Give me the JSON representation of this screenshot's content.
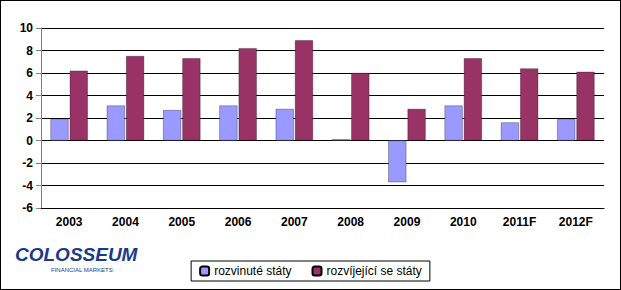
{
  "chart_data": {
    "type": "bar",
    "categories": [
      "2003",
      "2004",
      "2005",
      "2006",
      "2007",
      "2008",
      "2009",
      "2010",
      "2011F",
      "2012F"
    ],
    "series": [
      {
        "name": "rozvinuté státy",
        "color": "#9999ff",
        "values": [
          1.9,
          3.1,
          2.7,
          3.1,
          2.8,
          0.1,
          -3.7,
          3.1,
          1.6,
          1.9
        ]
      },
      {
        "name": "rozvíjející se státy",
        "color": "#993366",
        "values": [
          6.2,
          7.5,
          7.3,
          8.2,
          8.9,
          6.0,
          2.8,
          7.3,
          6.4,
          6.1
        ]
      }
    ],
    "ylim": [
      -6,
      10
    ],
    "yticks": [
      -6,
      -4,
      -2,
      0,
      2,
      4,
      6,
      8,
      10
    ],
    "grid": true,
    "legend": "bottom",
    "annotations": [
      "COLOSSEUM",
      "FINANCIAL MARKETS"
    ]
  }
}
